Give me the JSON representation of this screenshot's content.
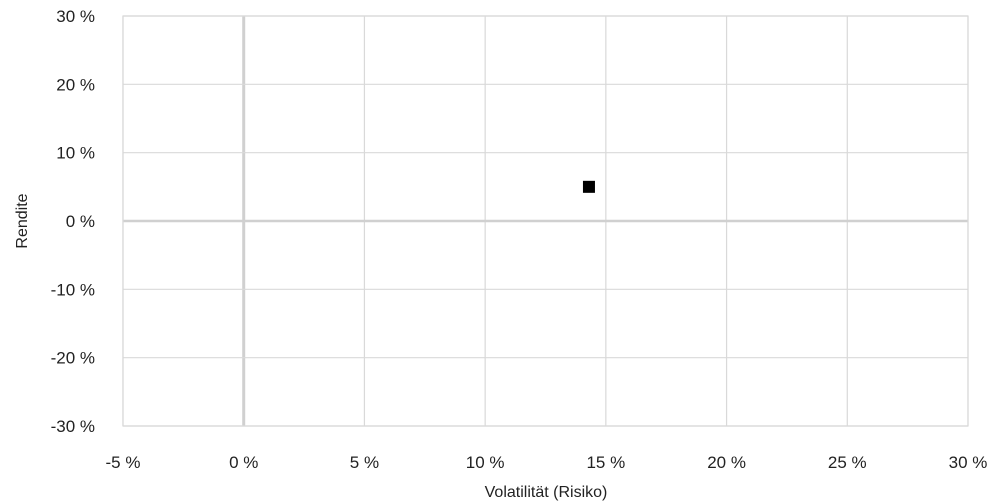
{
  "chart_data": {
    "type": "scatter",
    "title": "",
    "xlabel": "Volatilität (Risiko)",
    "ylabel": "Rendite",
    "xlim": [
      -5,
      30
    ],
    "ylim": [
      -30,
      30
    ],
    "x_ticks": [
      -5,
      0,
      5,
      10,
      15,
      20,
      25,
      30
    ],
    "y_ticks": [
      -30,
      -20,
      -10,
      0,
      10,
      20,
      30
    ],
    "x_tick_labels": [
      "-5 %",
      "0 %",
      "5 %",
      "10 %",
      "15 %",
      "20 %",
      "25 %",
      "30 %"
    ],
    "y_tick_labels": [
      "-30 %",
      "-20 %",
      "-10 %",
      "0 %",
      "10 %",
      "20 %",
      "30 %"
    ],
    "grid": true,
    "legend": "none",
    "series": [
      {
        "marker": "square",
        "color": "#000000",
        "points": [
          {
            "x": 14.3,
            "y": 5.0
          }
        ]
      }
    ],
    "colors": {
      "grid": "#d9d9d9",
      "zero_line": "#d0d0d0",
      "marker": "#000000",
      "text": "#222222"
    }
  }
}
